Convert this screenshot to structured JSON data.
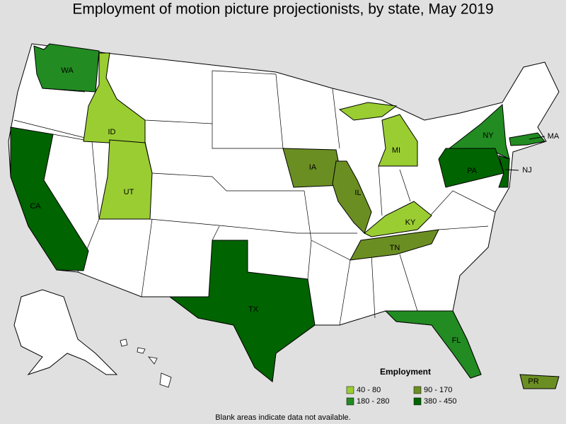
{
  "title": "Employment of motion picture projectionists, by state, May 2019",
  "legend": {
    "title": "Employment",
    "bins": [
      {
        "label": "40 - 80",
        "color": "#9acd32"
      },
      {
        "label": "90 - 170",
        "color": "#6b8e23"
      },
      {
        "label": "180 - 280",
        "color": "#228b22"
      },
      {
        "label": "380 - 450",
        "color": "#006400"
      }
    ]
  },
  "states": [
    {
      "label": "WA",
      "bin": 2
    },
    {
      "label": "ID",
      "bin": 0
    },
    {
      "label": "UT",
      "bin": 0
    },
    {
      "label": "CA",
      "bin": 3
    },
    {
      "label": "TX",
      "bin": 3
    },
    {
      "label": "IA",
      "bin": 1
    },
    {
      "label": "IL",
      "bin": 1
    },
    {
      "label": "MI",
      "bin": 0
    },
    {
      "label": "KY",
      "bin": 0
    },
    {
      "label": "TN",
      "bin": 1
    },
    {
      "label": "FL",
      "bin": 2
    },
    {
      "label": "NY",
      "bin": 2
    },
    {
      "label": "MA",
      "bin": 2
    },
    {
      "label": "PA",
      "bin": 3
    },
    {
      "label": "NJ",
      "bin": 3
    },
    {
      "label": "PR",
      "bin": 1
    }
  ],
  "note": "Blank areas indicate data not available."
}
